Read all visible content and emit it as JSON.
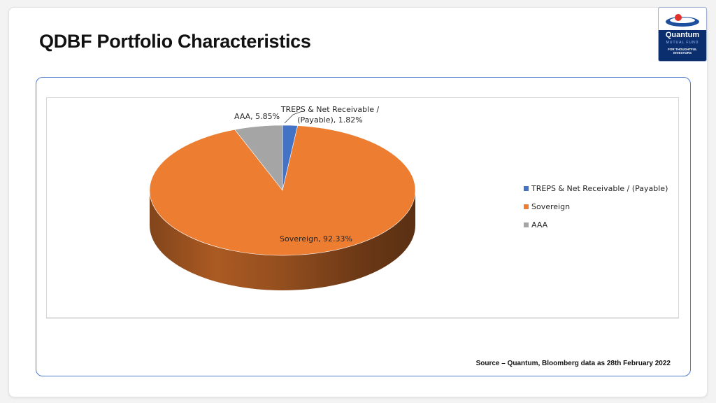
{
  "slide": {
    "title": "QDBF Portfolio Characteristics",
    "source": "Source – Quantum, Bloomberg data as 28th February 2022"
  },
  "logo": {
    "name": "Quantum",
    "subtitle": "MUTUAL FUND",
    "tagline": "FOR THOUGHTFUL INVESTORS"
  },
  "chart_data": {
    "type": "pie",
    "title": "",
    "categories": [
      "TREPS & Net Receivable / (Payable)",
      "Sovereign",
      "AAA"
    ],
    "values": [
      1.82,
      92.33,
      5.85
    ],
    "unit": "%",
    "colors": [
      "#4472c4",
      "#ed7d31",
      "#a5a5a5"
    ],
    "data_labels": [
      [
        "TREPS & Net Receivable /",
        "(Payable), 1.82%"
      ],
      [
        "Sovereign, 92.33%"
      ],
      [
        "AAA, 5.85%"
      ]
    ],
    "legend": {
      "placement": "right",
      "entries": [
        "TREPS & Net Receivable / (Payable)",
        "Sovereign",
        "AAA"
      ]
    },
    "style": "3d"
  }
}
